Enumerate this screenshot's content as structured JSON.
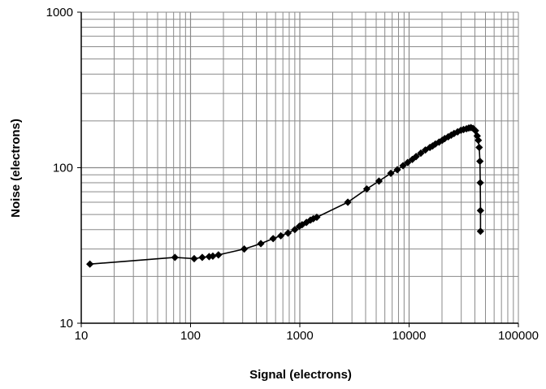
{
  "chart_data": {
    "type": "scatter",
    "xlabel": "Signal (electrons)",
    "ylabel": "Noise (electrons)",
    "xscale": "log",
    "yscale": "log",
    "xlim": [
      10,
      100000
    ],
    "ylim": [
      10,
      1000
    ],
    "grid": true,
    "x_ticks": [
      "10",
      "100",
      "1000",
      "10000",
      "100000"
    ],
    "y_ticks": [
      "10",
      "100",
      "1000"
    ],
    "colors": {
      "series": "#000000",
      "grid": "#8a8a8a",
      "axis": "#000000"
    },
    "marker": "diamond",
    "series": [
      {
        "x": [
          12,
          72,
          108,
          128,
          148,
          160,
          180,
          310,
          440,
          570,
          670,
          780,
          900,
          990,
          1050,
          1150,
          1250,
          1330,
          1430,
          2750,
          4100,
          5300,
          6800,
          7800,
          8800,
          9700,
          10700,
          11600,
          12800,
          14100,
          15500,
          16400,
          17400,
          18800,
          20100,
          21200,
          22800,
          24300,
          25800,
          27800,
          29800,
          31500,
          33500,
          35200,
          36800,
          38500,
          40500,
          42000,
          43000,
          43800,
          44500,
          44800,
          45000
        ],
        "y": [
          24,
          26.5,
          26,
          26.5,
          26.8,
          27,
          27.5,
          30,
          32.5,
          35,
          36.5,
          38,
          40,
          42,
          43,
          44.5,
          46,
          47,
          48,
          60,
          73,
          82,
          92,
          97,
          103,
          108,
          113,
          118,
          124,
          130,
          135,
          138,
          142,
          146,
          150,
          154,
          158,
          162,
          166,
          170,
          174,
          176,
          178,
          180,
          181,
          179,
          173,
          160,
          150,
          135,
          110,
          80,
          53
        ]
      }
    ],
    "tail_point": {
      "x": 45000,
      "y": 39
    }
  }
}
